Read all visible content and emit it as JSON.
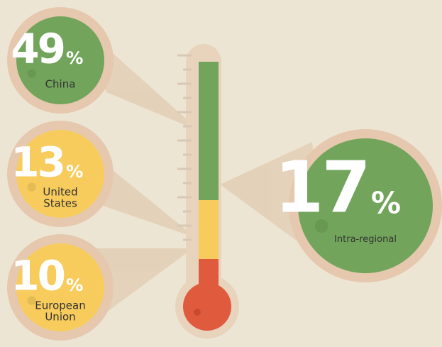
{
  "callouts": [
    {
      "value": 49,
      "unit": "%",
      "label_lines": [
        "China"
      ]
    },
    {
      "value": 13,
      "unit": "%",
      "label_lines": [
        "United",
        "States"
      ]
    },
    {
      "value": 10,
      "unit": "%",
      "label_lines": [
        "European",
        "Union"
      ]
    },
    {
      "value": 17,
      "unit": "%",
      "label_lines": [
        "Intra-regional"
      ]
    }
  ]
}
